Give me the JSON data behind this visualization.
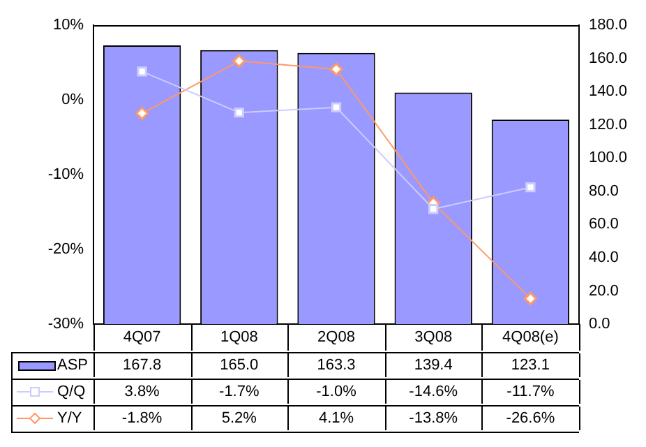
{
  "chart_data": {
    "type": "bar",
    "categories": [
      "4Q07",
      "1Q08",
      "2Q08",
      "3Q08",
      "4Q08(e)"
    ],
    "series": [
      {
        "name": "ASP",
        "axis": "y2",
        "color": "#9999ff",
        "values": [
          167.8,
          165.0,
          163.3,
          139.4,
          123.1
        ],
        "value_labels": [
          "167.8",
          "165.0",
          "163.3",
          "139.4",
          "123.1"
        ]
      },
      {
        "name": "Q/Q",
        "type": "line",
        "axis": "y",
        "color": "#ccccff",
        "marker": "square",
        "values": [
          3.8,
          -1.7,
          -1.0,
          -14.6,
          -11.7
        ],
        "value_labels": [
          "3.8%",
          "-1.7%",
          "-1.0%",
          "-14.6%",
          "-11.7%"
        ]
      },
      {
        "name": "Y/Y",
        "type": "line",
        "axis": "y",
        "color": "#ff9966",
        "marker": "diamond",
        "values": [
          -1.8,
          5.2,
          4.1,
          -13.8,
          -26.6
        ],
        "value_labels": [
          "-1.8%",
          "5.2%",
          "4.1%",
          "-13.8%",
          "-26.6%"
        ]
      }
    ],
    "ylim": [
      -30,
      10
    ],
    "yticks": [
      {
        "value": -30,
        "label": "-30%"
      },
      {
        "value": -20,
        "label": "-20%"
      },
      {
        "value": -10,
        "label": "-10%"
      },
      {
        "value": 0,
        "label": "0%"
      },
      {
        "value": 10,
        "label": "10%"
      }
    ],
    "y2lim": [
      0,
      180
    ],
    "y2ticks": [
      {
        "value": 0,
        "label": "0.0"
      },
      {
        "value": 20,
        "label": "20.0"
      },
      {
        "value": 40,
        "label": "40.0"
      },
      {
        "value": 60,
        "label": "60.0"
      },
      {
        "value": 80,
        "label": "80.0"
      },
      {
        "value": 100,
        "label": "100.0"
      },
      {
        "value": 120,
        "label": "120.0"
      },
      {
        "value": 140,
        "label": "140.0"
      },
      {
        "value": 160,
        "label": "160.0"
      },
      {
        "value": 180,
        "label": "180.0"
      }
    ],
    "grid": false,
    "legend": "bottom"
  }
}
